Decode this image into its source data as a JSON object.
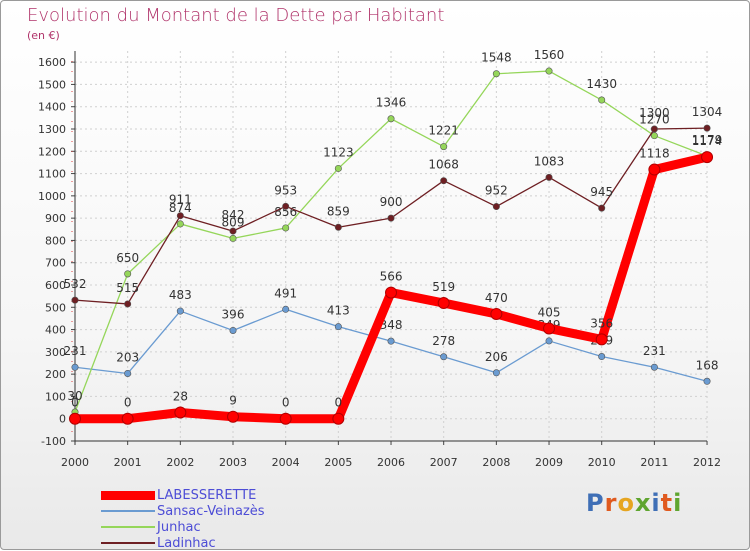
{
  "chart_data": {
    "type": "line",
    "title": "Evolution du Montant de la Dette par Habitant",
    "subtitle": "(en €)",
    "categories": [
      "2000",
      "2001",
      "2002",
      "2003",
      "2004",
      "2005",
      "2006",
      "2007",
      "2008",
      "2009",
      "2010",
      "2011",
      "2012"
    ],
    "y_ticks": [
      "-100",
      "0",
      "100",
      "200",
      "300",
      "400",
      "500",
      "600",
      "700",
      "800",
      "900",
      "1000",
      "1100",
      "1200",
      "1300",
      "1400",
      "1500",
      "1600"
    ],
    "ylim": [
      -100,
      1650
    ],
    "grid": true,
    "legend_position": "bottom-left",
    "series": [
      {
        "name": "LABESSERETTE",
        "color": "#ff0000",
        "values": [
          0,
          0,
          28,
          9,
          0,
          0,
          566,
          519,
          470,
          405,
          356,
          1118,
          1174
        ],
        "labels": [
          "0",
          "0",
          "28",
          "9",
          "0",
          "0",
          "566",
          "519",
          "470",
          "405",
          "356",
          "1118",
          "1174"
        ]
      },
      {
        "name": "Sansac-Veinazès",
        "color": "#6a9bd1",
        "values": [
          231,
          203,
          483,
          396,
          491,
          413,
          348,
          278,
          206,
          349,
          279,
          231,
          168
        ],
        "labels": [
          "231",
          "203",
          "483",
          "396",
          "491",
          "413",
          "348",
          "278",
          "206",
          "349",
          "279",
          "231",
          "168"
        ]
      },
      {
        "name": "Junhac",
        "color": "#95d65a",
        "values": [
          30,
          650,
          874,
          809,
          856,
          1123,
          1346,
          1221,
          1548,
          1560,
          1430,
          1270,
          1179
        ],
        "labels": [
          "30",
          "650",
          "874",
          "809",
          "856",
          "1123",
          "1346",
          "1221",
          "1548",
          "1560",
          "1430",
          "1270",
          "1179"
        ]
      },
      {
        "name": "Ladinhac",
        "color": "#6e1f23",
        "values": [
          532,
          515,
          911,
          842,
          953,
          859,
          900,
          1068,
          952,
          1083,
          945,
          1300,
          1304
        ],
        "labels": [
          "532",
          "515",
          "911",
          "842",
          "953",
          "859",
          "900",
          "1068",
          "952",
          "1083",
          "945",
          "1300",
          "1304"
        ]
      }
    ]
  },
  "logo": {
    "letters": [
      "P",
      "r",
      "o",
      "x",
      "i",
      "t",
      "i"
    ],
    "colors": [
      "#3f6fb6",
      "#e05a1f",
      "#e6a521",
      "#5fa52f",
      "#3f6fb6",
      "#e05a1f",
      "#5fa52f"
    ]
  }
}
